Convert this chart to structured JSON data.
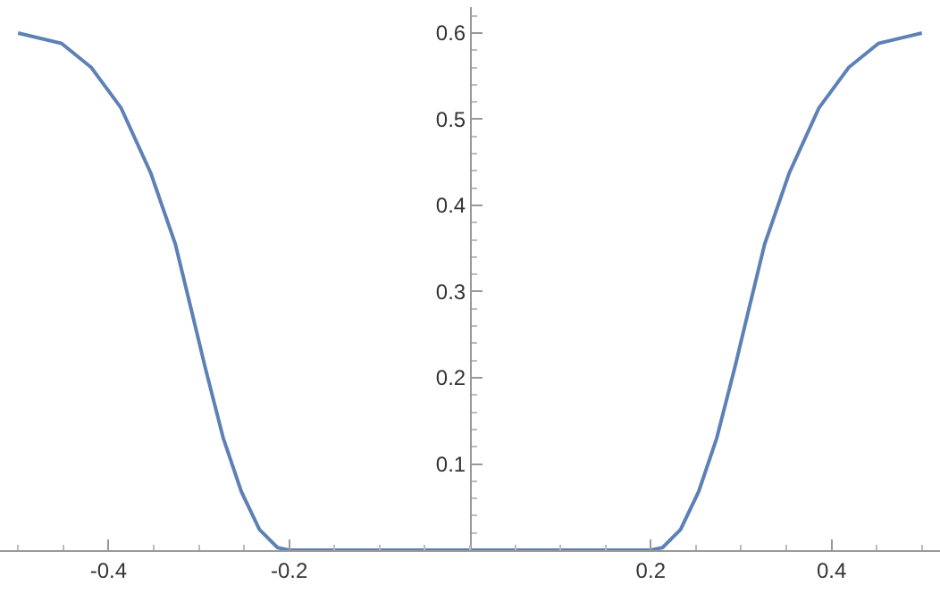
{
  "chart_data": {
    "type": "line",
    "x": [
      -0.5,
      -0.452,
      -0.419,
      -0.386,
      -0.353,
      -0.326,
      -0.307,
      -0.293,
      -0.273,
      -0.253,
      -0.233,
      -0.213,
      -0.2,
      0.2,
      0.213,
      0.233,
      0.253,
      0.273,
      0.293,
      0.307,
      0.326,
      0.353,
      0.386,
      0.419,
      0.452,
      0.5
    ],
    "series": [
      {
        "color": "#5e81b5",
        "values": [
          0.6,
          0.588,
          0.56,
          0.513,
          0.437,
          0.355,
          0.273,
          0.212,
          0.13,
          0.068,
          0.024,
          0.003,
          0,
          0,
          0.003,
          0.024,
          0.068,
          0.13,
          0.212,
          0.273,
          0.355,
          0.437,
          0.513,
          0.56,
          0.588,
          0.6
        ]
      }
    ],
    "xlim": [
      -0.52,
      0.52
    ],
    "ylim": [
      0,
      0.63
    ],
    "xticks": [
      -0.4,
      -0.2,
      0.2,
      0.4
    ],
    "yticks": [
      0.1,
      0.2,
      0.3,
      0.4,
      0.5,
      0.6
    ],
    "grid": false,
    "legend": false,
    "marker": "none",
    "line_style": "solid"
  }
}
